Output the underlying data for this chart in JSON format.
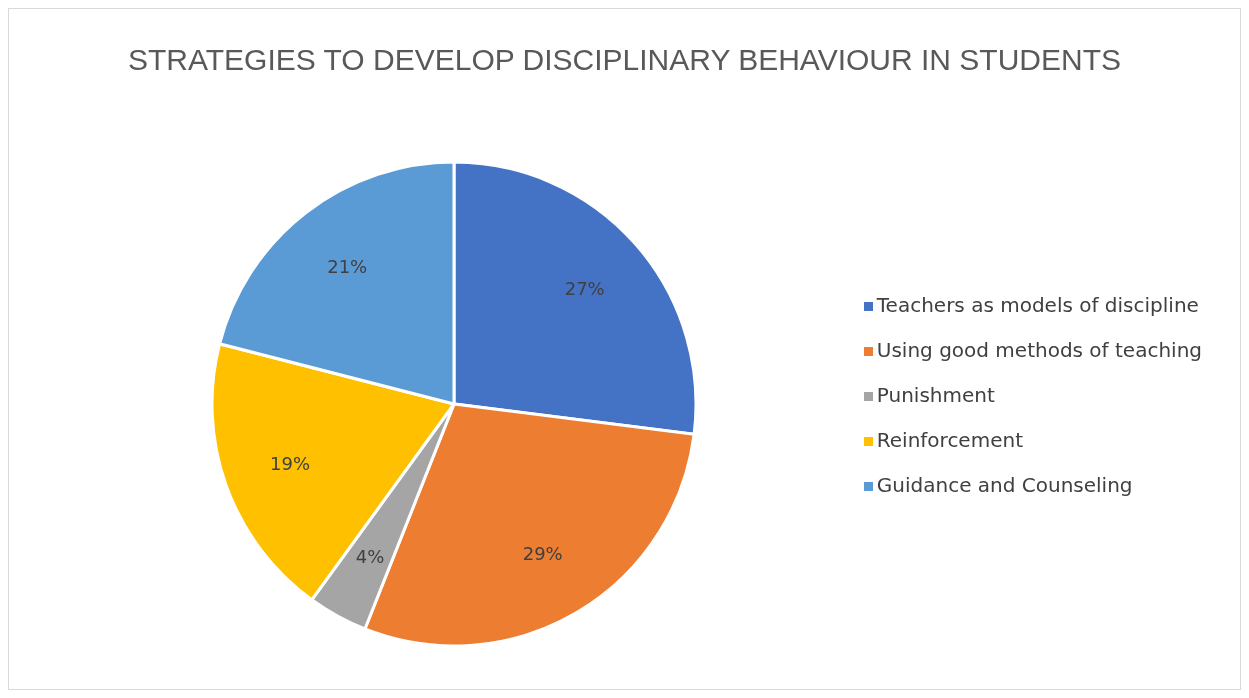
{
  "chart_data": {
    "type": "pie",
    "title": "STRATEGIES TO DEVELOP DISCIPLINARY BEHAVIOUR IN STUDENTS",
    "categories": [
      "Teachers as models of discipline",
      "Using good methods of teaching",
      "Punishment",
      "Reinforcement",
      "Guidance and Counseling"
    ],
    "values": [
      27,
      29,
      4,
      19,
      21
    ],
    "colors": [
      "#4472c4",
      "#ed7d31",
      "#a5a5a5",
      "#ffc000",
      "#5b9bd5"
    ],
    "value_labels": [
      "27%",
      "29%",
      "4%",
      "19%",
      "21%"
    ],
    "legend": "right"
  }
}
